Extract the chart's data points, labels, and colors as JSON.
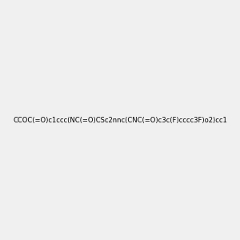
{
  "smiles": "CCOC(=O)c1ccc(NC(=O)CSc2nnc(CNC(=O)c3c(F)cccc3F)o2)cc1",
  "image_size": 300,
  "background_color": "#f0f0f0",
  "title": ""
}
